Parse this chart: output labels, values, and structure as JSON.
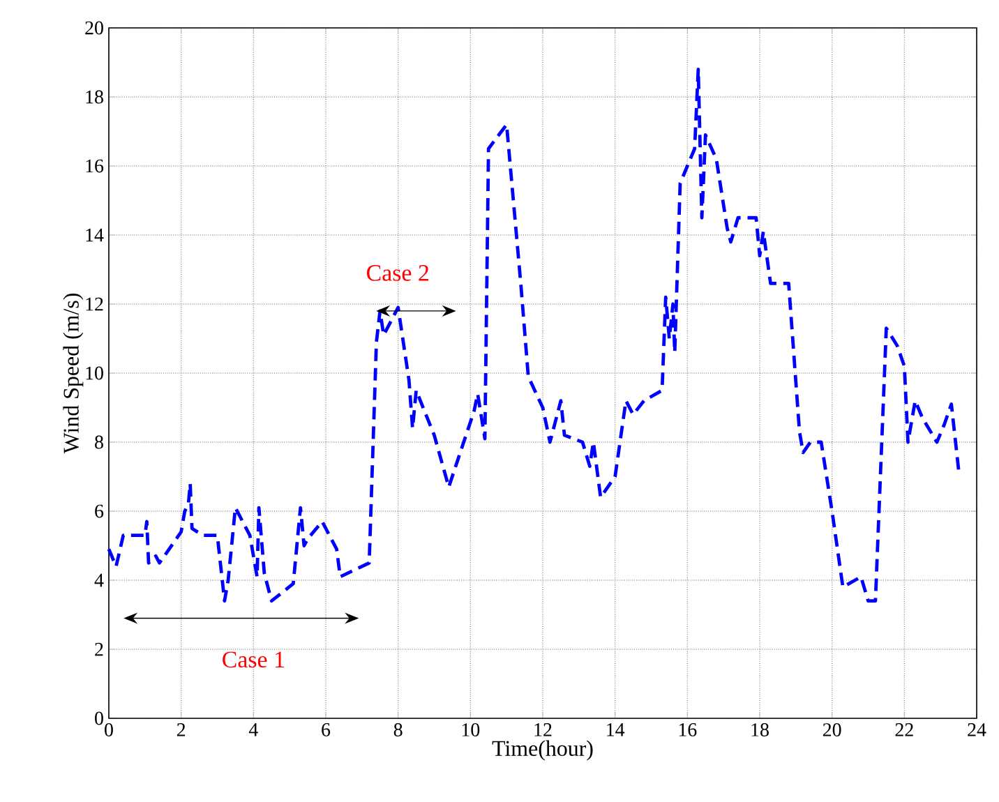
{
  "chart_data": {
    "type": "line",
    "xlabel": "Time(hour)",
    "ylabel": "Wind Speed (m/s)",
    "xlim": [
      0,
      24
    ],
    "ylim": [
      0,
      20
    ],
    "xticks": [
      0,
      2,
      4,
      6,
      8,
      10,
      12,
      14,
      16,
      18,
      20,
      22,
      24
    ],
    "yticks": [
      0,
      2,
      4,
      6,
      8,
      10,
      12,
      14,
      16,
      18,
      20
    ],
    "grid": true,
    "marker": "none",
    "line_style": "dashed",
    "series": [
      {
        "color": "#0000ff",
        "x": [
          0,
          0.2,
          0.4,
          1.0,
          1.05,
          1.1,
          1.3,
          1.4,
          2.0,
          2.1,
          2.2,
          2.25,
          2.3,
          2.6,
          3.0,
          3.2,
          3.3,
          3.5,
          3.9,
          4.1,
          4.15,
          4.3,
          4.5,
          5.1,
          5.3,
          5.4,
          5.5,
          5.9,
          6.3,
          6.4,
          7.2,
          7.4,
          7.5,
          7.6,
          8.0,
          8.3,
          8.4,
          8.5,
          9.0,
          9.4,
          10.1,
          10.2,
          10.4,
          10.5,
          11.0,
          11.4,
          11.6,
          12.0,
          12.2,
          12.5,
          12.6,
          13.1,
          13.3,
          13.4,
          13.6,
          14.0,
          14.3,
          14.5,
          14.8,
          15.3,
          15.4,
          15.5,
          15.6,
          15.65,
          15.8,
          16.2,
          16.3,
          16.4,
          16.5,
          16.8,
          17.1,
          17.2,
          17.4,
          17.9,
          18.0,
          18.1,
          18.3,
          18.8,
          19.1,
          19.2,
          19.4,
          19.7,
          20.0,
          20.3,
          20.8,
          21.0,
          21.2,
          21.5,
          21.8,
          22.0,
          22.1,
          22.3,
          22.5,
          22.9,
          23.1,
          23.3,
          23.5
        ],
        "values": [
          4.9,
          4.4,
          5.3,
          5.3,
          5.7,
          4.5,
          4.7,
          4.5,
          5.4,
          6.0,
          6.2,
          6.8,
          5.5,
          5.3,
          5.3,
          3.4,
          4.0,
          6.1,
          5.3,
          4.1,
          6.1,
          4.2,
          3.4,
          3.9,
          6.1,
          5.0,
          5.2,
          5.7,
          4.9,
          4.1,
          4.5,
          10.9,
          11.8,
          11.1,
          11.9,
          9.8,
          8.4,
          9.5,
          8.2,
          6.7,
          8.9,
          9.4,
          8.1,
          16.5,
          17.2,
          12.5,
          9.9,
          9.0,
          8.0,
          9.2,
          8.2,
          8.0,
          7.3,
          8.0,
          6.4,
          7.0,
          9.2,
          8.8,
          9.2,
          9.5,
          12.2,
          11.0,
          12.0,
          10.6,
          15.5,
          16.5,
          18.8,
          14.5,
          16.9,
          16.2,
          14.2,
          13.8,
          14.5,
          14.5,
          13.4,
          14.1,
          12.6,
          12.6,
          8.3,
          7.7,
          8.0,
          8.0,
          6.0,
          3.8,
          4.1,
          3.4,
          3.4,
          11.3,
          10.8,
          10.2,
          8.0,
          9.2,
          8.7,
          8.0,
          8.5,
          9.1,
          7.2
        ]
      }
    ],
    "annotations": [
      "Case 1",
      "Case 2"
    ]
  }
}
